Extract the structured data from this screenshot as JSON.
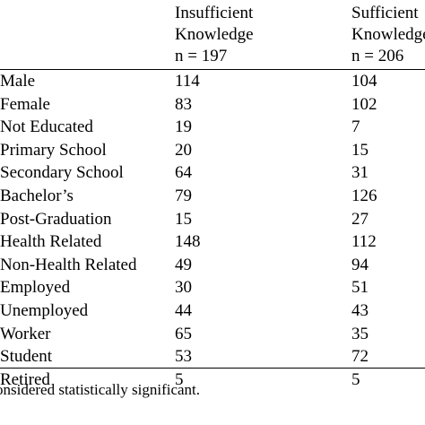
{
  "header": {
    "col1": {
      "line1": "Insufficient",
      "line2": "Knowledge",
      "line3": "n = 197"
    },
    "col2": {
      "line1": "Sufficient",
      "line2": "Knowledge",
      "line3": "n = 206"
    }
  },
  "rows": [
    {
      "label": "Male",
      "insufficient": "114",
      "sufficient": "104"
    },
    {
      "label": "Female",
      "insufficient": "83",
      "sufficient": "102"
    },
    {
      "label": "Not Educated",
      "insufficient": "19",
      "sufficient": "7"
    },
    {
      "label": "Primary School",
      "insufficient": "20",
      "sufficient": "15"
    },
    {
      "label": "Secondary School",
      "insufficient": "64",
      "sufficient": "31"
    },
    {
      "label": "Bachelor’s",
      "insufficient": "79",
      "sufficient": "126"
    },
    {
      "label": "Post-Graduation",
      "insufficient": "15",
      "sufficient": "27"
    },
    {
      "label": "Health Related",
      "insufficient": "148",
      "sufficient": "112"
    },
    {
      "label": "Non-Health Related",
      "insufficient": "49",
      "sufficient": "94"
    },
    {
      "label": "Employed",
      "insufficient": "30",
      "sufficient": "51"
    },
    {
      "label": "Unemployed",
      "insufficient": "44",
      "sufficient": "43"
    },
    {
      "label": "Worker",
      "insufficient": "65",
      "sufficient": "35"
    },
    {
      "label": "Student",
      "insufficient": "53",
      "sufficient": "72"
    },
    {
      "label": "Retired",
      "insufficient": "5",
      "sufficient": "5"
    }
  ],
  "footnote": "onsidered statistically significant."
}
